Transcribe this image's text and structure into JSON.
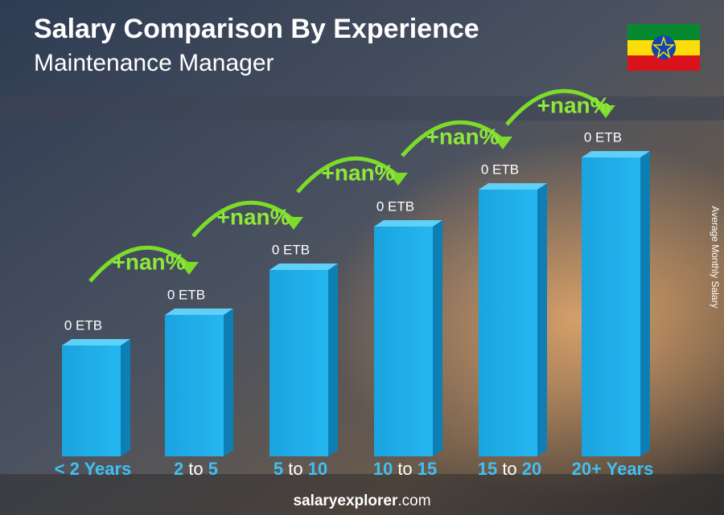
{
  "header": {
    "title": "Salary Comparison By Experience",
    "subtitle": "Maintenance Manager"
  },
  "axis_label": "Average Monthly Salary",
  "categories": [
    [
      "< 2 Years"
    ],
    [
      "2",
      "to",
      "5"
    ],
    [
      "5",
      "to",
      "10"
    ],
    [
      "10",
      "to",
      "15"
    ],
    [
      "15",
      "to",
      "20"
    ],
    [
      "20+ Years"
    ]
  ],
  "value_labels": [
    "0 ETB",
    "0 ETB",
    "0 ETB",
    "0 ETB",
    "0 ETB",
    "0 ETB"
  ],
  "changes": [
    "+nan%",
    "+nan%",
    "+nan%",
    "+nan%",
    "+nan%"
  ],
  "footer": {
    "brand_a": "salary",
    "brand_b": "explorer",
    "brand_c": ".com"
  }
}
